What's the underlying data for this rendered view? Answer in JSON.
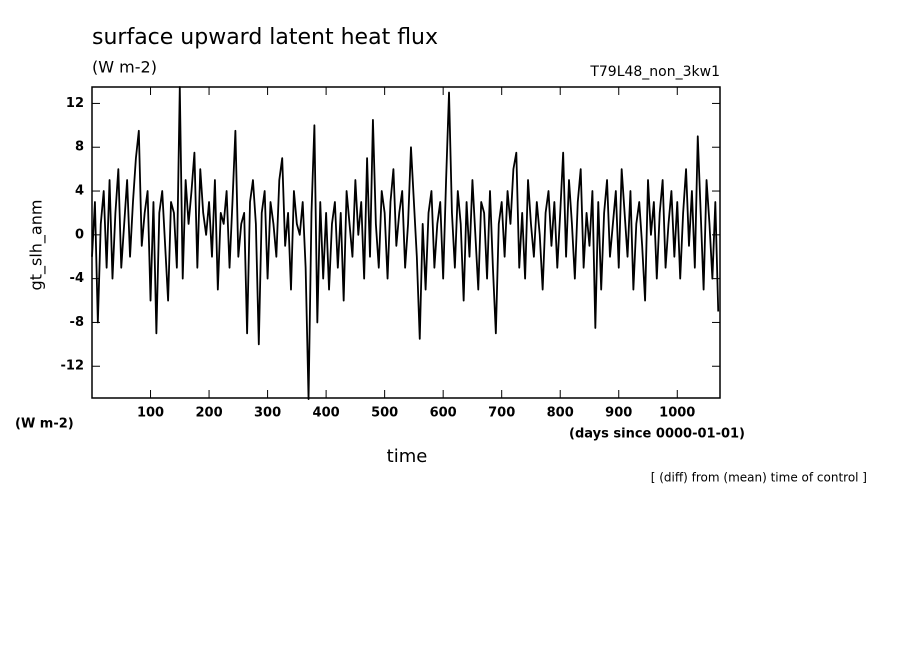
{
  "chart_data": {
    "type": "line",
    "title": "surface upward latent heat flux",
    "subtitle": "(W m-2)",
    "run_label": "T79L48_non_3kw1",
    "y_label": "gt_slh_anm",
    "y_unit": "(W m-2)",
    "x_label": "time",
    "x_unit": "(days since 0000-01-01)",
    "annotation": "[ (diff) from (mean) time of control ]",
    "color": "#000000",
    "xlim": [
      0,
      1073
    ],
    "ylim": [
      -14.9,
      13.5
    ],
    "xticks": [
      100,
      200,
      300,
      400,
      500,
      600,
      700,
      800,
      900,
      1000
    ],
    "yticks": [
      -12,
      -8,
      -4,
      0,
      4,
      8,
      12
    ],
    "x": [
      0,
      5,
      10,
      15,
      20,
      25,
      30,
      35,
      40,
      45,
      50,
      55,
      60,
      65,
      70,
      75,
      80,
      85,
      90,
      95,
      100,
      105,
      110,
      115,
      120,
      125,
      130,
      135,
      140,
      145,
      150,
      155,
      160,
      165,
      170,
      175,
      180,
      185,
      190,
      195,
      200,
      205,
      210,
      215,
      220,
      225,
      230,
      235,
      240,
      245,
      250,
      255,
      260,
      265,
      270,
      275,
      280,
      285,
      290,
      295,
      300,
      305,
      310,
      315,
      320,
      325,
      330,
      335,
      340,
      345,
      350,
      355,
      360,
      365,
      370,
      375,
      380,
      385,
      390,
      395,
      400,
      405,
      410,
      415,
      420,
      425,
      430,
      435,
      440,
      445,
      450,
      455,
      460,
      465,
      470,
      475,
      480,
      485,
      490,
      495,
      500,
      505,
      510,
      515,
      520,
      525,
      530,
      535,
      540,
      545,
      550,
      555,
      560,
      565,
      570,
      575,
      580,
      585,
      590,
      595,
      600,
      605,
      610,
      615,
      620,
      625,
      630,
      635,
      640,
      645,
      650,
      655,
      660,
      665,
      670,
      675,
      680,
      685,
      690,
      695,
      700,
      705,
      710,
      715,
      720,
      725,
      730,
      735,
      740,
      745,
      750,
      755,
      760,
      765,
      770,
      775,
      780,
      785,
      790,
      795,
      800,
      805,
      810,
      815,
      820,
      825,
      830,
      835,
      840,
      845,
      850,
      855,
      860,
      865,
      870,
      875,
      880,
      885,
      890,
      895,
      900,
      905,
      910,
      915,
      920,
      925,
      930,
      935,
      940,
      945,
      950,
      955,
      960,
      965,
      970,
      975,
      980,
      985,
      990,
      995,
      1000,
      1005,
      1010,
      1015,
      1020,
      1025,
      1030,
      1035,
      1040,
      1045,
      1050,
      1055,
      1060,
      1065,
      1070
    ],
    "values": [
      -2,
      3,
      -8,
      1,
      4,
      -3,
      5,
      -4,
      2,
      6,
      -3,
      1,
      5,
      -2,
      3,
      7,
      9.5,
      -1,
      2,
      4,
      -6,
      3,
      -9,
      2,
      4,
      -1,
      -6,
      3,
      2,
      -3,
      13.5,
      -4,
      5,
      1,
      4,
      7.5,
      -3,
      6,
      2,
      0,
      3,
      -2,
      5,
      -5,
      2,
      1,
      4,
      -3,
      3,
      9.5,
      -2,
      1,
      2,
      -9,
      3,
      5,
      1,
      -10,
      2,
      4,
      -4,
      3,
      1,
      -2,
      5,
      7,
      -1,
      2,
      -5,
      4,
      1,
      0,
      3,
      -3,
      -15,
      2,
      10,
      -8,
      3,
      -4,
      2,
      -5,
      1,
      3,
      -3,
      2,
      -6,
      4,
      1,
      -2,
      5,
      0,
      3,
      -4,
      7,
      -2,
      10.5,
      1,
      -3,
      4,
      2,
      -4,
      3,
      6,
      -1,
      2,
      4,
      -3,
      1,
      8,
      3,
      -2,
      -9.5,
      1,
      -5,
      2,
      4,
      -3,
      1,
      3,
      -4,
      5,
      13,
      2,
      -3,
      4,
      1,
      -6,
      3,
      -2,
      5,
      0,
      -5,
      3,
      2,
      -4,
      4,
      -3,
      -9,
      1,
      3,
      -2,
      4,
      1,
      6,
      7.5,
      -3,
      2,
      -4,
      5,
      1,
      -2,
      3,
      0,
      -5,
      2,
      4,
      -1,
      3,
      -3,
      2,
      7.5,
      -2,
      5,
      1,
      -4,
      3,
      6,
      -3,
      2,
      -1,
      4,
      -8.5,
      3,
      -5,
      2,
      5,
      -2,
      1,
      4,
      -3,
      6,
      2,
      -2,
      4,
      -5,
      1,
      3,
      -1,
      -6,
      5,
      0,
      3,
      -4,
      2,
      5,
      -3,
      1,
      4,
      -2,
      3,
      -4,
      2,
      6,
      -1,
      4,
      -3,
      9,
      2,
      -5,
      5,
      1,
      -4,
      3,
      -7
    ]
  }
}
